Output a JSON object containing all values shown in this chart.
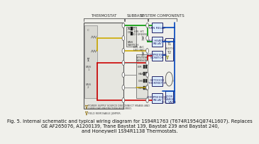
{
  "bg_color": "#f0f0eb",
  "caption": "Fig. 5. Internal schematic and typical wiring diagram for 1S94R1763 (T674R1954Q874L1607). Replaces\nGE AF265076, A1200139, Trane Baystat 139, Baystat 239 and Baystat 240,\nand Honeywell 1S94R1138 Thermostats.",
  "caption_fontsize": 4.8,
  "section_labels": [
    "THERMOSTAT",
    "SUBBASE",
    "SYSTEM COMPONENTS"
  ],
  "section_label_fontsize": 4.0,
  "wire_red": "#cc0000",
  "wire_green": "#009900",
  "wire_yellow": "#ccaa00",
  "wire_blue": "#0044bb",
  "wire_gray": "#888888",
  "wire_black": "#222222",
  "box_edge": "#555555",
  "box_face": "#e6e6e0",
  "comp_edge_dark": "#333333",
  "comp_face_light": "#ddeeff",
  "comp_face_dark": "#bbccdd",
  "right_box_edge": "#222266",
  "right_box_face": "#ddeeff"
}
